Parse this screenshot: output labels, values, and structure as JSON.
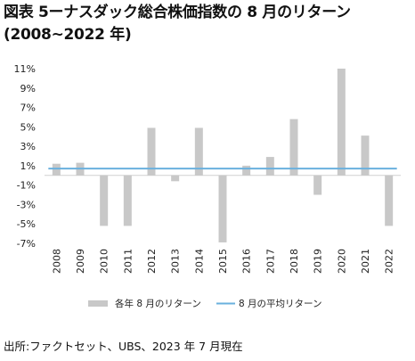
{
  "header": {
    "title_line1": "図表 5ーナスダック総合株価指数の 8 月のリターン",
    "title_line2": "(2008~2022 年)"
  },
  "chart_data": {
    "type": "bar",
    "categories": [
      "2008",
      "2009",
      "2010",
      "2011",
      "2012",
      "2013",
      "2014",
      "2015",
      "2016",
      "2017",
      "2018",
      "2019",
      "2020",
      "2021",
      "2022"
    ],
    "series": [
      {
        "name": "各年 8 月のリターン",
        "type": "bar",
        "color": "#c8c8c8",
        "values": [
          1.2,
          1.3,
          -5.2,
          -5.2,
          4.9,
          -0.6,
          4.9,
          -6.9,
          1.0,
          1.9,
          5.8,
          -2.0,
          11.0,
          4.1,
          -5.2
        ]
      },
      {
        "name": "8 月の平均リターン",
        "type": "line",
        "color": "#6ab0de",
        "values": [
          0.7,
          0.7,
          0.7,
          0.7,
          0.7,
          0.7,
          0.7,
          0.7,
          0.7,
          0.7,
          0.7,
          0.7,
          0.7,
          0.7,
          0.7
        ]
      }
    ],
    "yticks": [
      11,
      9,
      7,
      5,
      3,
      1,
      -1,
      -3,
      -5,
      -7
    ],
    "ytick_labels": [
      "11%",
      "9%",
      "7%",
      "5%",
      "3%",
      "1%",
      "-1%",
      "-3%",
      "-5%",
      "-7%"
    ],
    "ylim": [
      -7,
      11
    ],
    "grid": false,
    "legend_position": "bottom"
  },
  "footer": {
    "source": "出所:ファクトセット、UBS、2023 年 7 月現在"
  }
}
